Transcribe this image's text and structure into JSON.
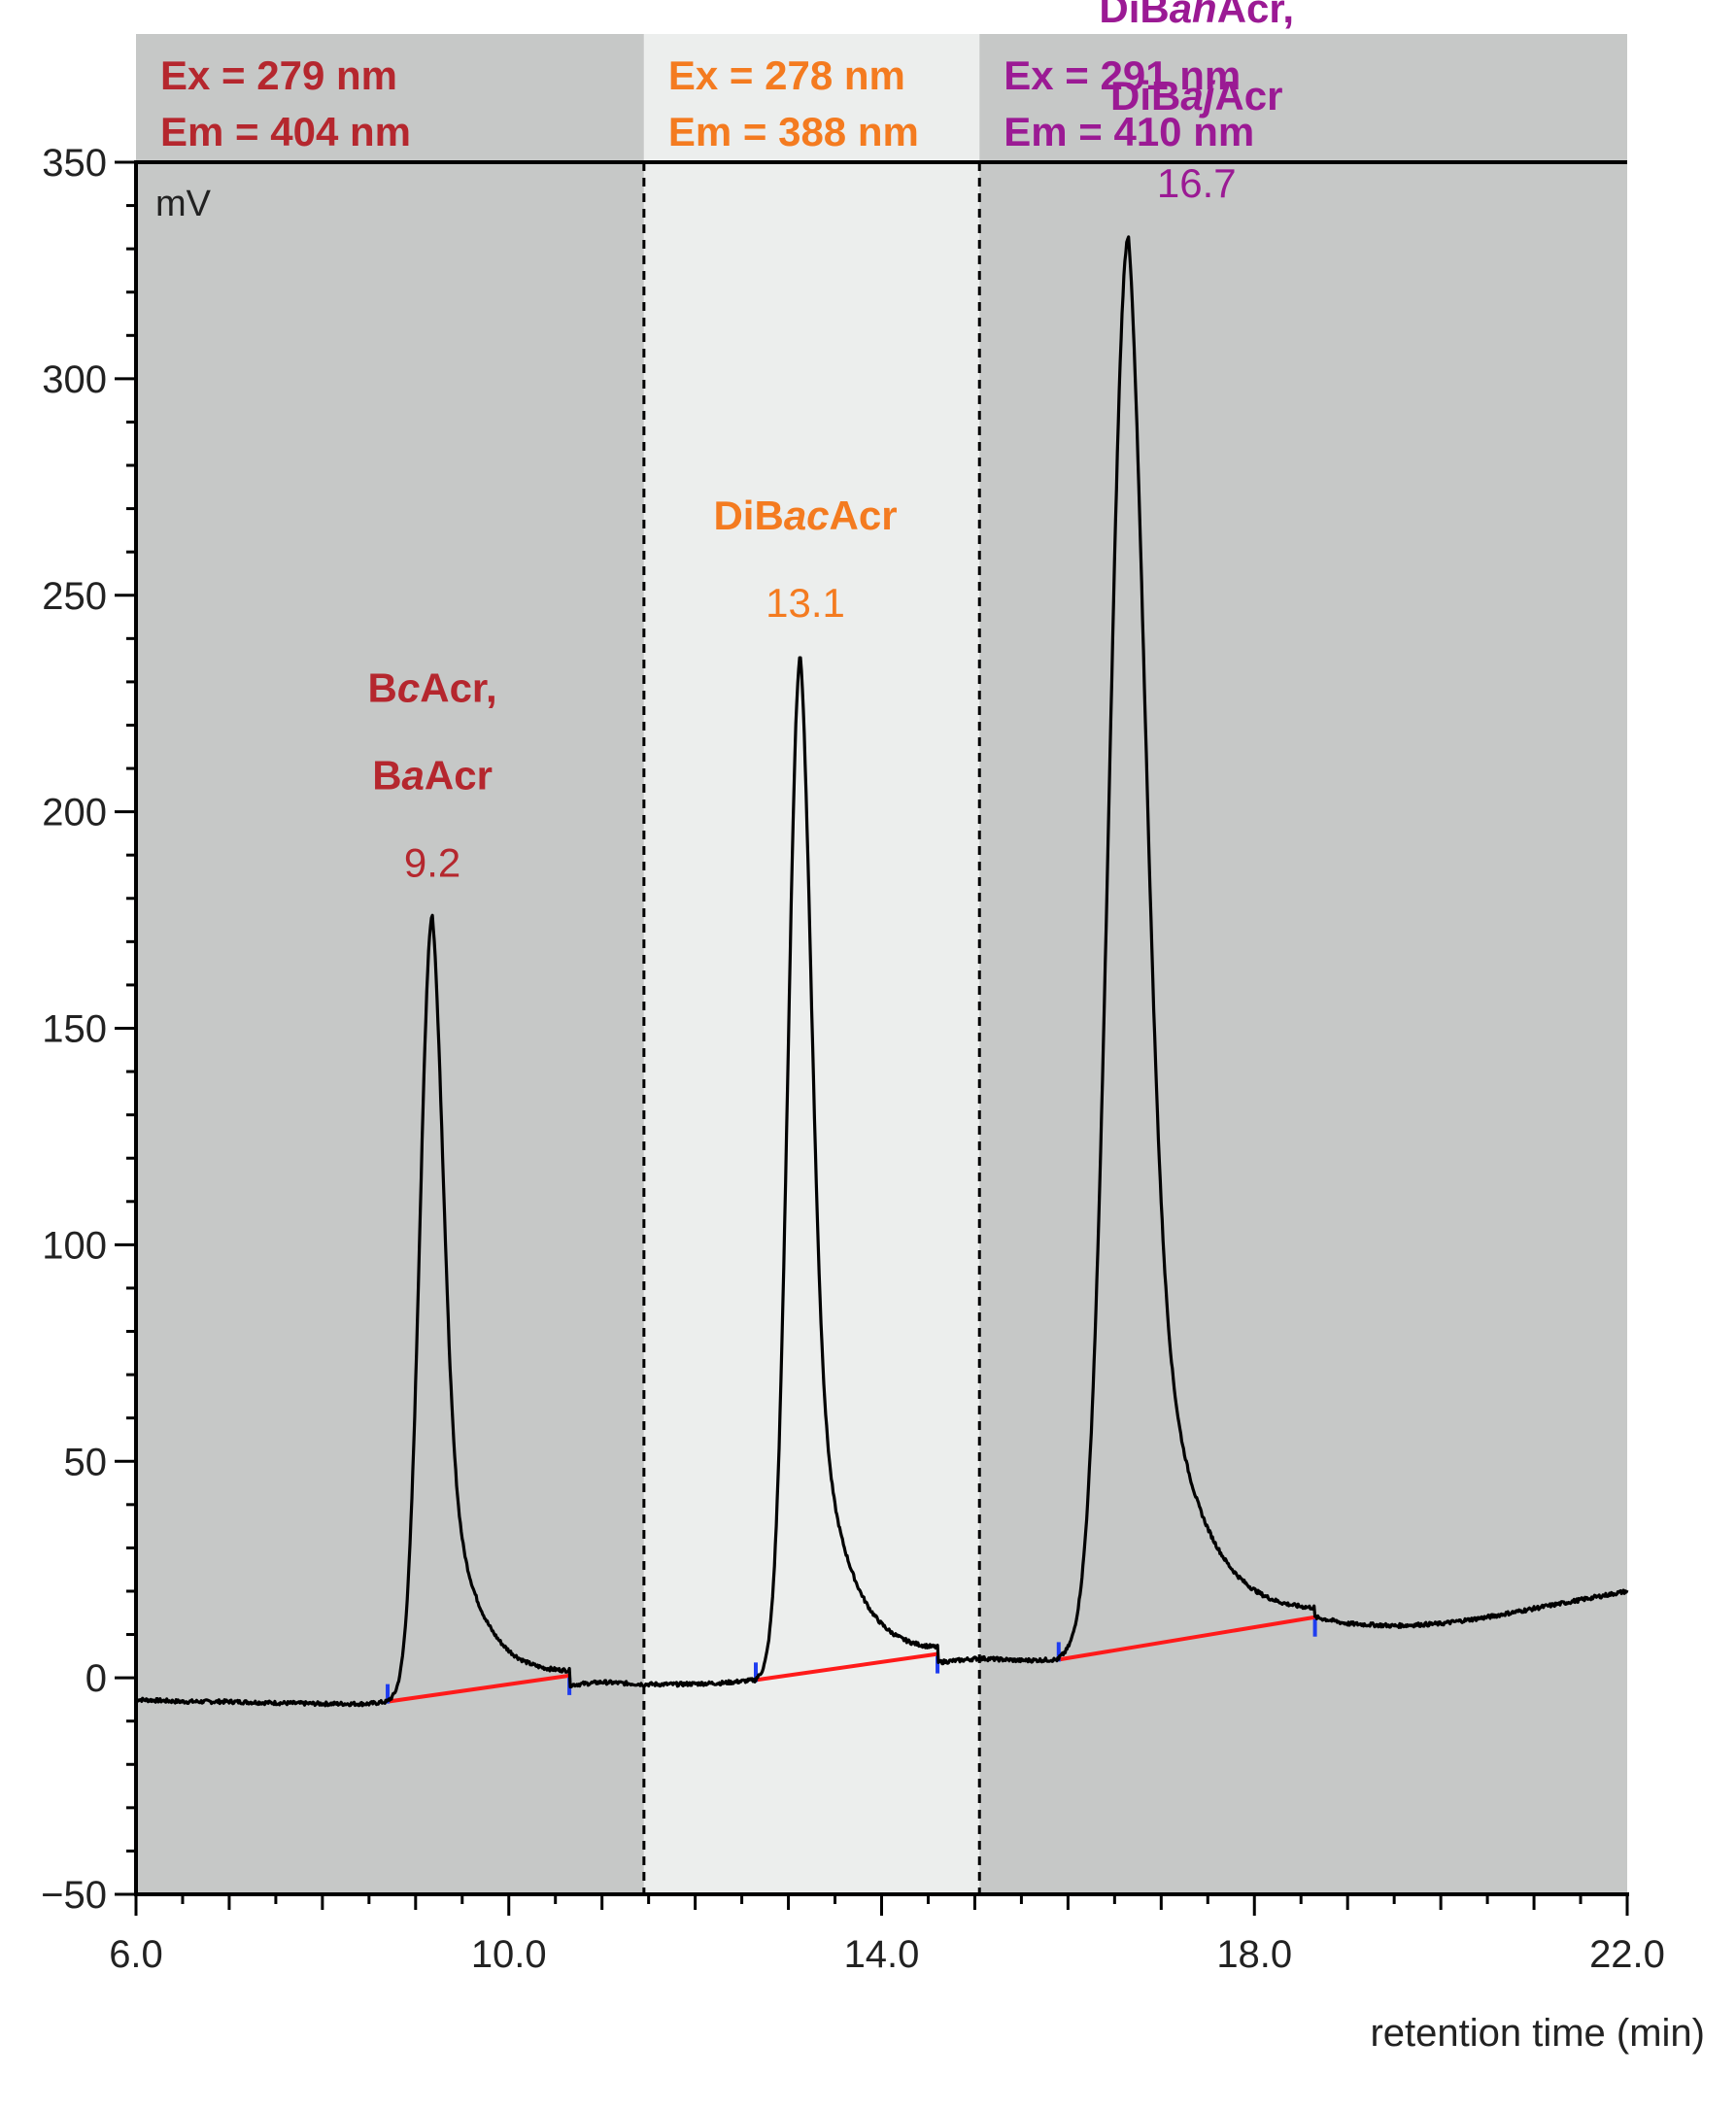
{
  "chart_data": {
    "type": "line",
    "xlabel": "retention time (min)",
    "ylabel_unit": "mV",
    "xlim": [
      6.0,
      22.0
    ],
    "ylim": [
      -50,
      350
    ],
    "x_ticks": [
      6.0,
      10.0,
      14.0,
      18.0,
      22.0
    ],
    "x_tick_labels": [
      "6.0",
      "10.0",
      "14.0",
      "18.0",
      "22.0"
    ],
    "y_ticks": [
      -50,
      0,
      50,
      100,
      150,
      200,
      250,
      300,
      350
    ],
    "y_tick_labels": [
      "−50",
      "0",
      "50",
      "100",
      "150",
      "200",
      "250",
      "300",
      "350"
    ],
    "grid": false,
    "colors": {
      "window_dark": "#c6c8c7",
      "window_light": "#eceeed",
      "trace": "#000000",
      "baseline": "#ff1a1a",
      "markers": "#1f3df0"
    },
    "windows": [
      {
        "x_start": 6.0,
        "x_end": 11.45,
        "shade": "dark",
        "color": "#b5272e",
        "ex": "Ex = 279 nm",
        "em": "Em = 404 nm"
      },
      {
        "x_start": 11.45,
        "x_end": 15.05,
        "shade": "light",
        "color": "#f47b20",
        "ex": "Ex = 278 nm",
        "em": "Em = 388 nm"
      },
      {
        "x_start": 15.05,
        "x_end": 22.0,
        "shade": "dark",
        "color": "#9b1a94",
        "ex": "Ex = 291 nm",
        "em": "Em = 410 nm"
      }
    ],
    "baseline_noise": [
      [
        6.0,
        -5
      ],
      [
        6.5,
        -5.5
      ],
      [
        7.0,
        -5.5
      ],
      [
        7.5,
        -5.8
      ],
      [
        8.0,
        -6
      ],
      [
        8.5,
        -6
      ],
      [
        8.7,
        -5.5
      ],
      [
        11.0,
        -1
      ],
      [
        11.45,
        -1.5
      ],
      [
        11.8,
        -1.5
      ],
      [
        12.3,
        -1.2
      ],
      [
        12.65,
        -0.5
      ],
      [
        15.05,
        4.5
      ],
      [
        15.5,
        4
      ],
      [
        15.9,
        4.2
      ],
      [
        18.65,
        14
      ],
      [
        19.0,
        12.5
      ],
      [
        19.5,
        12
      ],
      [
        20.0,
        12.5
      ],
      [
        20.5,
        14
      ],
      [
        21.0,
        16
      ],
      [
        21.5,
        18
      ],
      [
        22.0,
        20
      ]
    ],
    "series": [
      {
        "peaks": [
          {
            "name_parts": [
              [
                "B",
                false
              ],
              [
                "c",
                true
              ],
              [
                "Acr,",
                false
              ]
            ],
            "name_parts_2": [
              [
                "B",
                false
              ],
              [
                "a",
                true
              ],
              [
                "Acr",
                false
              ]
            ],
            "retention_time": "9.2",
            "apex_x": 9.18,
            "apex_y": 176,
            "start_x": 8.7,
            "end_x": 10.65,
            "start_y": -5.5,
            "end_y": 0.5,
            "color": "#b5272e"
          },
          {
            "name_parts": [
              [
                "DiB",
                false
              ],
              [
                "ac",
                true
              ],
              [
                "Acr",
                false
              ]
            ],
            "name_parts_2": [],
            "retention_time": "13.1",
            "apex_x": 13.13,
            "apex_y": 236,
            "start_x": 12.65,
            "end_x": 14.6,
            "start_y": -0.5,
            "end_y": 5.5,
            "color": "#f47b20"
          },
          {
            "name_parts": [
              [
                "DiB",
                false
              ],
              [
                "ah",
                true
              ],
              [
                "Acr,",
                false
              ]
            ],
            "name_parts_2": [
              [
                "DiB",
                false
              ],
              [
                "aj",
                true
              ],
              [
                "Acr",
                false
              ]
            ],
            "retention_time": "16.7",
            "apex_x": 16.65,
            "apex_y": 333,
            "start_x": 15.9,
            "end_x": 18.65,
            "start_y": 4.2,
            "end_y": 14,
            "color": "#9b1a94"
          }
        ]
      }
    ]
  }
}
